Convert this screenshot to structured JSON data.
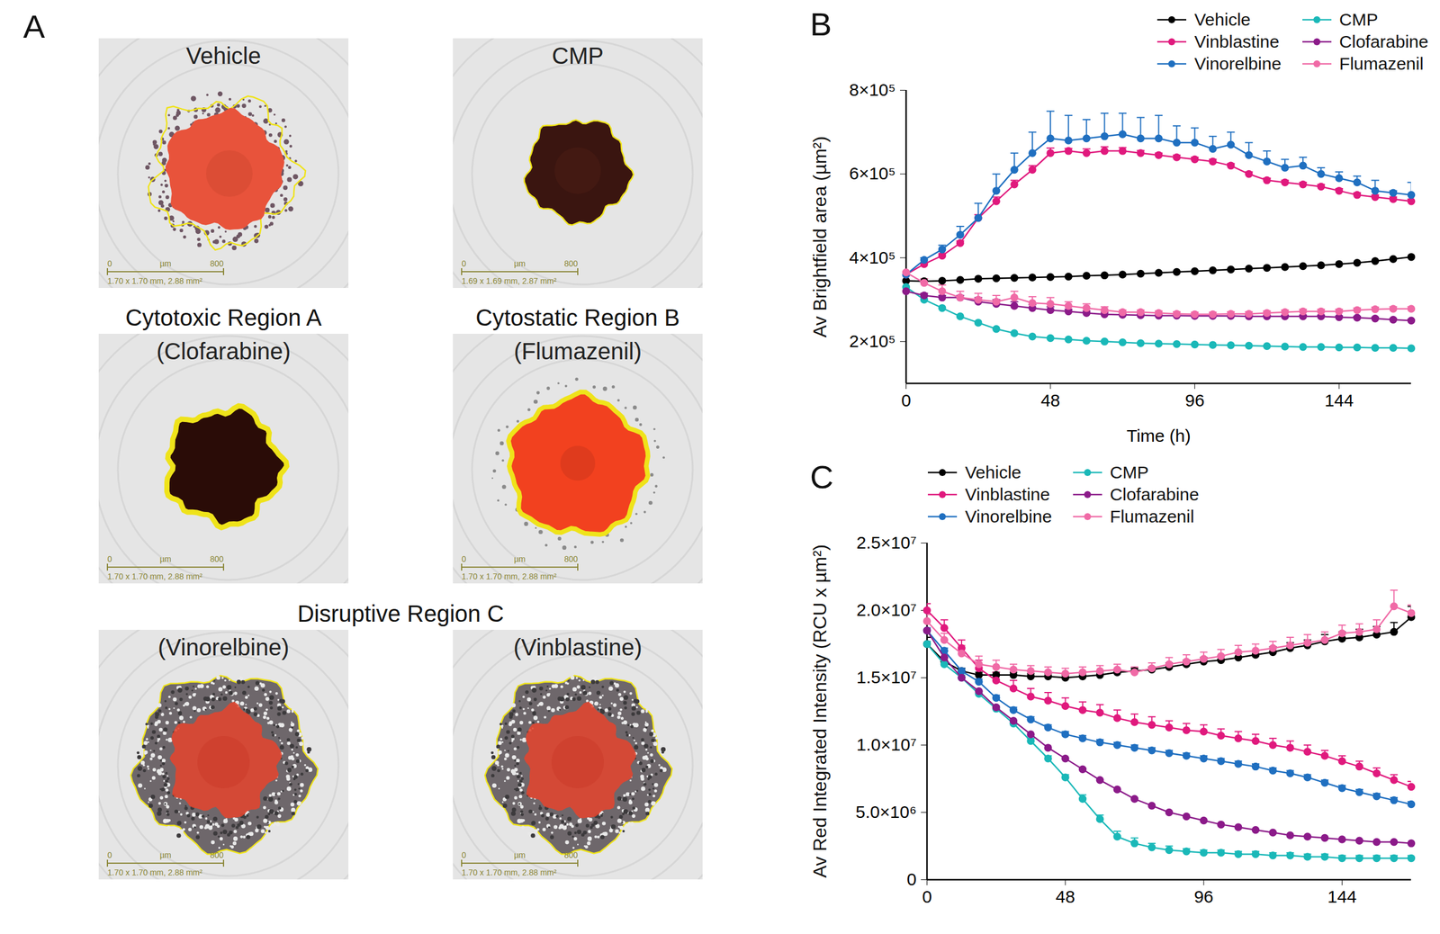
{
  "panel_a": {
    "panel_label": "A",
    "rows": [
      {
        "images": [
          {
            "title": "Vehicle",
            "scale_bar": {
              "start": 0,
              "end": 800,
              "unit": "µm",
              "caption": "1.70 x 1.70 mm, 2.88 mm²"
            }
          },
          {
            "title": "CMP",
            "scale_bar": {
              "start": 0,
              "end": 800,
              "unit": "µm",
              "caption": "1.69 x 1.69 mm, 2.87 mm²"
            }
          }
        ]
      },
      {
        "images": [
          {
            "heading": "Cytotoxic Region A",
            "title": "(Clofarabine)",
            "scale_bar": {
              "start": 0,
              "end": 800,
              "unit": "µm",
              "caption": "1.70 x 1.70 mm, 2.88 mm²"
            }
          },
          {
            "heading": "Cytostatic Region B",
            "title": "(Flumazenil)",
            "scale_bar": {
              "start": 0,
              "end": 800,
              "unit": "µm",
              "caption": "1.70 x 1.70 mm, 2.88 mm²"
            }
          }
        ]
      },
      {
        "heading": "Disruptive Region C",
        "images": [
          {
            "title": "(Vinorelbine)",
            "scale_bar": {
              "start": 0,
              "end": 800,
              "unit": "µm",
              "caption": "1.70 x 1.70 mm, 2.88 mm²"
            }
          },
          {
            "title": "(Vinblastine)",
            "scale_bar": {
              "start": 0,
              "end": 800,
              "unit": "µm",
              "caption": "1.70 x 1.70 mm, 2.88 mm²"
            }
          }
        ]
      }
    ]
  },
  "chart_data": [
    {
      "type": "line",
      "panel_label": "B",
      "x_label": "Time (h)",
      "y_label": "Av Brightfield area (µm²)",
      "legend": "top right",
      "marker": "circle",
      "x": [
        0,
        6,
        12,
        18,
        24,
        30,
        36,
        42,
        48,
        54,
        60,
        66,
        72,
        78,
        84,
        90,
        96,
        102,
        108,
        114,
        120,
        126,
        132,
        138,
        144,
        150,
        156,
        162,
        168
      ],
      "xlim": [
        0,
        168
      ],
      "xticks": [
        0,
        48,
        96,
        144
      ],
      "ylim": [
        100000.0,
        800000.0
      ],
      "yticks": [
        {
          "value": 200000.0,
          "label": "2×10⁵"
        },
        {
          "value": 400000.0,
          "label": "4×10⁵"
        },
        {
          "value": 600000.0,
          "label": "6×10⁵"
        },
        {
          "value": 800000.0,
          "label": "8×10⁵"
        }
      ],
      "series": [
        {
          "name": "Vehicle",
          "color": "#000000",
          "values": [
            345000.0,
            344000.0,
            345000.0,
            347000.0,
            350000.0,
            351000.0,
            352000.0,
            353000.0,
            354000.0,
            355000.0,
            357000.0,
            358000.0,
            360000.0,
            362000.0,
            364000.0,
            366000.0,
            368000.0,
            370000.0,
            372000.0,
            374000.0,
            376000.0,
            378000.0,
            380000.0,
            382000.0,
            385000.0,
            388000.0,
            392000.0,
            397000.0,
            402000.0
          ]
        },
        {
          "name": "Vinblastine",
          "color": "#e0197d",
          "values": [
            360000.0,
            385000.0,
            405000.0,
            435000.0,
            495000.0,
            535000.0,
            575000.0,
            610000.0,
            650000.0,
            655000.0,
            650000.0,
            655000.0,
            655000.0,
            650000.0,
            645000.0,
            640000.0,
            635000.0,
            630000.0,
            620000.0,
            600000.0,
            585000.0,
            580000.0,
            575000.0,
            570000.0,
            560000.0,
            550000.0,
            545000.0,
            540000.0,
            535000.0
          ],
          "errors": [
            0,
            3000.0,
            5000.0,
            5000.0,
            8000.0,
            10000.0,
            10000.0,
            10000.0,
            12000.0,
            6000.0,
            10000.0,
            10000.0,
            8000.0,
            6000.0,
            5000.0,
            5000.0,
            5000.0,
            5000.0,
            5000.0,
            5000.0,
            5000.0,
            5000.0,
            5000.0,
            5000.0,
            5000.0,
            5000.0,
            5000.0,
            5000.0,
            5000.0
          ]
        },
        {
          "name": "Vinorelbine",
          "color": "#1f6fc0",
          "values": [
            360000.0,
            395000.0,
            420000.0,
            455000.0,
            495000.0,
            560000.0,
            610000.0,
            650000.0,
            685000.0,
            680000.0,
            685000.0,
            690000.0,
            695000.0,
            685000.0,
            685000.0,
            675000.0,
            675000.0,
            660000.0,
            670000.0,
            645000.0,
            630000.0,
            615000.0,
            620000.0,
            600000.0,
            590000.0,
            580000.0,
            560000.0,
            555000.0,
            550000.0
          ],
          "errors": [
            0,
            5000.0,
            10000.0,
            20000.0,
            35000.0,
            40000.0,
            40000.0,
            50000.0,
            65000.0,
            60000.0,
            45000.0,
            55000.0,
            50000.0,
            50000.0,
            55000.0,
            40000.0,
            35000.0,
            30000.0,
            30000.0,
            30000.0,
            25000.0,
            20000.0,
            20000.0,
            15000.0,
            15000.0,
            15000.0,
            25000.0,
            5000.0,
            30000.0
          ]
        },
        {
          "name": "CMP",
          "color": "#1ab8b8",
          "values": [
            330000.0,
            300000.0,
            280000.0,
            260000.0,
            245000.0,
            230000.0,
            220000.0,
            212000.0,
            208000.0,
            205000.0,
            202000.0,
            200000.0,
            198000.0,
            196000.0,
            195000.0,
            194000.0,
            193000.0,
            192000.0,
            191000.0,
            190000.0,
            189000.0,
            188000.0,
            187000.0,
            187000.0,
            186000.0,
            186000.0,
            185000.0,
            185000.0,
            184000.0
          ]
        },
        {
          "name": "Clofarabine",
          "color": "#8b1a89",
          "values": [
            320000.0,
            310000.0,
            305000.0,
            305000.0,
            295000.0,
            290000.0,
            285000.0,
            280000.0,
            275000.0,
            272000.0,
            268000.0,
            265000.0,
            264000.0,
            263000.0,
            262000.0,
            262000.0,
            261000.0,
            261000.0,
            261000.0,
            260000.0,
            260000.0,
            260000.0,
            260000.0,
            260000.0,
            258000.0,
            257000.0,
            255000.0,
            252000.0,
            250000.0
          ],
          "errors": [
            0,
            5000.0,
            5000.0,
            5000.0,
            10000.0,
            10000.0,
            10000.0,
            8000.0,
            8000.0,
            5000.0,
            5000.0,
            5000.0,
            5000.0,
            3000.0,
            3000.0,
            3000.0,
            3000.0,
            3000.0,
            3000.0,
            3000.0,
            3000.0,
            3000.0,
            3000.0,
            3000.0,
            3000.0,
            3000.0,
            3000.0,
            3000.0,
            3000.0
          ]
        },
        {
          "name": "Flumazenil",
          "color": "#f06aa6",
          "values": [
            365000.0,
            340000.0,
            320000.0,
            305000.0,
            300000.0,
            295000.0,
            305000.0,
            292000.0,
            290000.0,
            285000.0,
            280000.0,
            275000.0,
            270000.0,
            270000.0,
            268000.0,
            266000.0,
            265000.0,
            265000.0,
            266000.0,
            266000.0,
            268000.0,
            270000.0,
            272000.0,
            272000.0,
            272000.0,
            275000.0,
            277000.0,
            278000.0,
            278000.0
          ],
          "errors": [
            0,
            10000.0,
            15000.0,
            15000.0,
            15000.0,
            15000.0,
            15000.0,
            15000.0,
            15000.0,
            10000.0,
            10000.0,
            8000.0,
            5000.0,
            5000.0,
            5000.0,
            5000.0,
            5000.0,
            5000.0,
            5000.0,
            5000.0,
            5000.0,
            5000.0,
            5000.0,
            5000.0,
            5000.0,
            5000.0,
            5000.0,
            5000.0,
            5000.0
          ]
        }
      ]
    },
    {
      "type": "line",
      "panel_label": "C",
      "y_label": "Av Red Integrated Intensity (RCU x µm²)",
      "legend": "top left",
      "marker": "circle",
      "x": [
        0,
        6,
        12,
        18,
        24,
        30,
        36,
        42,
        48,
        54,
        60,
        66,
        72,
        78,
        84,
        90,
        96,
        102,
        108,
        114,
        120,
        126,
        132,
        138,
        144,
        150,
        156,
        162,
        168
      ],
      "xlim": [
        0,
        168
      ],
      "xticks": [
        0,
        48,
        96,
        144
      ],
      "ylim": [
        0,
        25000000.0
      ],
      "yticks": [
        0,
        {
          "value": 5000000.0,
          "label": "5.0×10⁶"
        },
        {
          "value": 10000000.0,
          "label": "1.0×10⁷"
        },
        {
          "value": 15000000.0,
          "label": "1.5×10⁷"
        },
        {
          "value": 20000000.0,
          "label": "2.0×10⁷"
        },
        {
          "value": 25000000.0,
          "label": "2.5×10⁷"
        }
      ],
      "series": [
        {
          "name": "Vehicle",
          "color": "#000000",
          "values": [
            17500000.0,
            16200000.0,
            15500000.0,
            15200000.0,
            15200000.0,
            15200000.0,
            15100000.0,
            15100000.0,
            15000000.0,
            15100000.0,
            15200000.0,
            15400000.0,
            15500000.0,
            15600000.0,
            15800000.0,
            16000000.0,
            16200000.0,
            16300000.0,
            16500000.0,
            16700000.0,
            16900000.0,
            17200000.0,
            17400000.0,
            17700000.0,
            17900000.0,
            18000000.0,
            18200000.0,
            18400000.0,
            19500000.0
          ],
          "errors": [
            500000.0,
            300000.0,
            200000.0,
            200000.0,
            200000.0,
            200000.0,
            200000.0,
            200000.0,
            200000.0,
            200000.0,
            200000.0,
            200000.0,
            200000.0,
            200000.0,
            300000.0,
            300000.0,
            300000.0,
            300000.0,
            300000.0,
            300000.0,
            400000.0,
            400000.0,
            400000.0,
            500000.0,
            500000.0,
            600000.0,
            600000.0,
            700000.0,
            800000.0
          ]
        },
        {
          "name": "Vinblastine",
          "color": "#e0197d",
          "values": [
            20000000.0,
            18700000.0,
            17200000.0,
            15700000.0,
            14800000.0,
            14200000.0,
            13600000.0,
            13300000.0,
            12900000.0,
            12600000.0,
            12400000.0,
            12000000.0,
            11700000.0,
            11500000.0,
            11300000.0,
            11100000.0,
            11000000.0,
            10700000.0,
            10500000.0,
            10300000.0,
            10000000.0,
            9800000.0,
            9500000.0,
            9200000.0,
            8800000.0,
            8400000.0,
            7900000.0,
            7400000.0,
            6900000.0
          ],
          "errors": [
            500000.0,
            600000.0,
            600000.0,
            600000.0,
            600000.0,
            600000.0,
            600000.0,
            600000.0,
            600000.0,
            600000.0,
            600000.0,
            600000.0,
            600000.0,
            600000.0,
            500000.0,
            500000.0,
            500000.0,
            500000.0,
            500000.0,
            500000.0,
            500000.0,
            500000.0,
            500000.0,
            400000.0,
            400000.0,
            400000.0,
            400000.0,
            400000.0,
            400000.0
          ]
        },
        {
          "name": "Vinorelbine",
          "color": "#1f6fc0",
          "values": [
            18500000.0,
            17000000.0,
            15500000.0,
            14700000.0,
            13500000.0,
            12600000.0,
            11900000.0,
            11300000.0,
            10800000.0,
            10500000.0,
            10200000.0,
            10000000.0,
            9800000.0,
            9600000.0,
            9400000.0,
            9200000.0,
            9000000.0,
            8800000.0,
            8600000.0,
            8400000.0,
            8100000.0,
            7900000.0,
            7600000.0,
            7200000.0,
            6800000.0,
            6500000.0,
            6200000.0,
            5900000.0,
            5600000.0
          ],
          "errors": [
            200000.0,
            200000.0,
            200000.0,
            200000.0,
            200000.0,
            200000.0,
            200000.0,
            200000.0,
            200000.0,
            200000.0,
            200000.0,
            200000.0,
            200000.0,
            200000.0,
            200000.0,
            200000.0,
            200000.0,
            200000.0,
            200000.0,
            200000.0,
            200000.0,
            200000.0,
            200000.0,
            200000.0,
            200000.0,
            200000.0,
            200000.0,
            200000.0,
            200000.0
          ]
        },
        {
          "name": "CMP",
          "color": "#1ab8b8",
          "values": [
            17500000.0,
            16000000.0,
            15000000.0,
            13800000.0,
            12700000.0,
            11600000.0,
            10300000.0,
            9000000.0,
            7600000.0,
            6000000.0,
            4500000.0,
            3200000.0,
            2700000.0,
            2400000.0,
            2200000.0,
            2100000.0,
            2000000.0,
            2000000.0,
            1900000.0,
            1900000.0,
            1800000.0,
            1800000.0,
            1700000.0,
            1700000.0,
            1600000.0,
            1600000.0,
            1600000.0,
            1600000.0,
            1600000.0
          ],
          "errors": [
            200000.0,
            200000.0,
            200000.0,
            200000.0,
            200000.0,
            200000.0,
            200000.0,
            200000.0,
            200000.0,
            300000.0,
            300000.0,
            400000.0,
            400000.0,
            300000.0,
            300000.0,
            200000.0,
            200000.0,
            200000.0,
            200000.0,
            200000.0,
            200000.0,
            200000.0,
            200000.0,
            200000.0,
            200000.0,
            200000.0,
            200000.0,
            200000.0,
            200000.0
          ]
        },
        {
          "name": "Clofarabine",
          "color": "#8b1a89",
          "values": [
            18500000.0,
            16500000.0,
            15000000.0,
            14000000.0,
            12800000.0,
            11800000.0,
            10800000.0,
            9800000.0,
            9000000.0,
            8200000.0,
            7400000.0,
            6700000.0,
            6000000.0,
            5500000.0,
            5000000.0,
            4700000.0,
            4400000.0,
            4100000.0,
            3900000.0,
            3700000.0,
            3500000.0,
            3300000.0,
            3200000.0,
            3100000.0,
            3000000.0,
            2900000.0,
            2800000.0,
            2800000.0,
            2700000.0
          ]
        },
        {
          "name": "Flumazenil",
          "color": "#f06aa6",
          "values": [
            19200000.0,
            17800000.0,
            16800000.0,
            16000000.0,
            15800000.0,
            15600000.0,
            15500000.0,
            15400000.0,
            15300000.0,
            15400000.0,
            15500000.0,
            15600000.0,
            15400000.0,
            15700000.0,
            16000000.0,
            16200000.0,
            16400000.0,
            16600000.0,
            16900000.0,
            17000000.0,
            17200000.0,
            17400000.0,
            17600000.0,
            17800000.0,
            18300000.0,
            18400000.0,
            18600000.0,
            20300000.0,
            19800000.0
          ],
          "errors": [
            500000.0,
            500000.0,
            600000.0,
            600000.0,
            500000.0,
            400000.0,
            400000.0,
            400000.0,
            400000.0,
            400000.0,
            400000.0,
            400000.0,
            400000.0,
            400000.0,
            500000.0,
            500000.0,
            500000.0,
            500000.0,
            500000.0,
            500000.0,
            500000.0,
            600000.0,
            600000.0,
            600000.0,
            600000.0,
            600000.0,
            700000.0,
            1200000.0,
            600000.0
          ]
        }
      ]
    }
  ]
}
